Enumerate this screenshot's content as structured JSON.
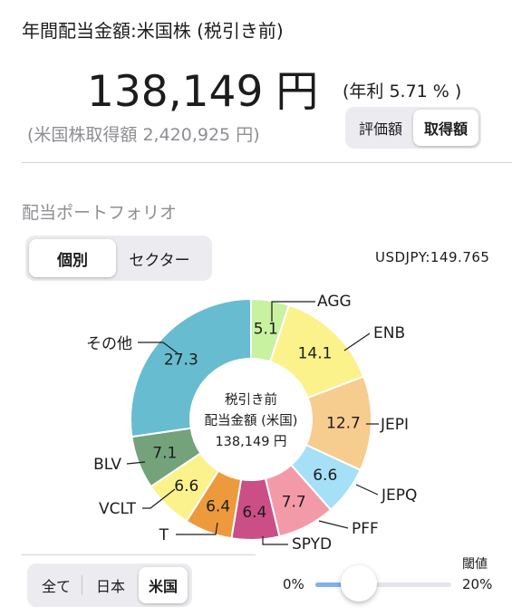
{
  "header": {
    "title": "年間配当金額:米国株 (税引き前)",
    "amount": "138,149",
    "amount_unit": "円",
    "yield_text": "(年利 5.71 % )",
    "acquisition_text": "(米国株取得額 2,420,925 円)",
    "basis_options": [
      "評価額",
      "取得額"
    ],
    "basis_selected": "取得額"
  },
  "portfolio": {
    "section_title": "配当ポートフォリオ",
    "view_options": [
      "個別",
      "セクター"
    ],
    "view_selected": "個別",
    "fx_rate": "USDJPY:149.765",
    "center_lines": [
      "税引き前",
      "配当金額 (米国)",
      "138,149 円"
    ]
  },
  "chart_data": {
    "type": "pie",
    "hole": true,
    "slices": [
      {
        "name": "AGG",
        "value": 5.1,
        "color": "#c8f1a0"
      },
      {
        "name": "ENB",
        "value": 14.1,
        "color": "#fbf28b"
      },
      {
        "name": "JEPI",
        "value": 12.7,
        "color": "#f6cc8f"
      },
      {
        "name": "JEPQ",
        "value": 6.6,
        "color": "#a6e0f6"
      },
      {
        "name": "PFF",
        "value": 7.7,
        "color": "#f39aa8"
      },
      {
        "name": "SPYD",
        "value": 6.4,
        "color": "#cc4e86"
      },
      {
        "name": "T",
        "value": 6.4,
        "color": "#ed9a3c"
      },
      {
        "name": "VCLT",
        "value": 6.6,
        "color": "#fbf28b"
      },
      {
        "name": "BLV",
        "value": 7.1,
        "color": "#74a27b"
      },
      {
        "name": "その他",
        "value": 27.3,
        "color": "#67bcd0"
      }
    ]
  },
  "filter": {
    "market_options": [
      "全て",
      "日本",
      "米国"
    ],
    "market_selected": "米国",
    "threshold_label": "閾値",
    "threshold_min": "0%",
    "threshold_max": "20%",
    "threshold_value_percent": 6.4
  }
}
